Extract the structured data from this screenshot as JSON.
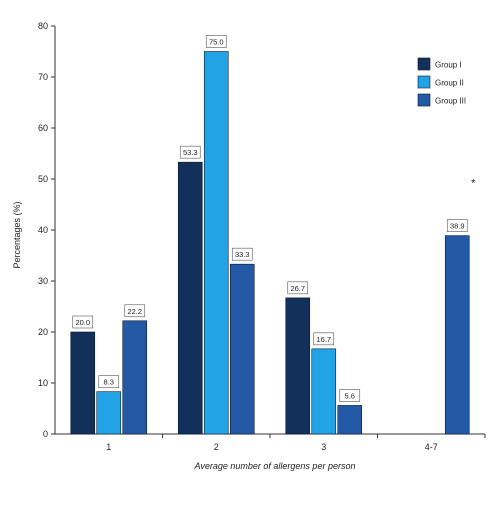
{
  "chart_data": {
    "type": "bar",
    "title": "",
    "xlabel": "Average number of allergens per person",
    "ylabel": "Percentages (%)",
    "ylim": [
      0,
      80
    ],
    "yticks": [
      0,
      10,
      20,
      30,
      40,
      50,
      60,
      70,
      80
    ],
    "grid": false,
    "legend_position": "top-right",
    "categories": [
      "1",
      "2",
      "3",
      "4-7"
    ],
    "series": [
      {
        "name": "Group I",
        "color": "#12305a",
        "values": [
          20.0,
          53.3,
          26.7,
          null
        ],
        "labels": [
          "20.0",
          "53.3",
          "26.7",
          ""
        ]
      },
      {
        "name": "Group II",
        "color": "#22a3e6",
        "values": [
          8.3,
          75.0,
          16.7,
          null
        ],
        "labels": [
          "8.3",
          "75.0",
          "16.7",
          ""
        ]
      },
      {
        "name": "Group III",
        "color": "#2459a6",
        "values": [
          22.2,
          33.3,
          5.6,
          38.9
        ],
        "labels": [
          "22.2",
          "33.3",
          "5.6",
          "38.9"
        ]
      }
    ],
    "annotations": [
      {
        "text": "*",
        "category": "4-7"
      }
    ]
  }
}
